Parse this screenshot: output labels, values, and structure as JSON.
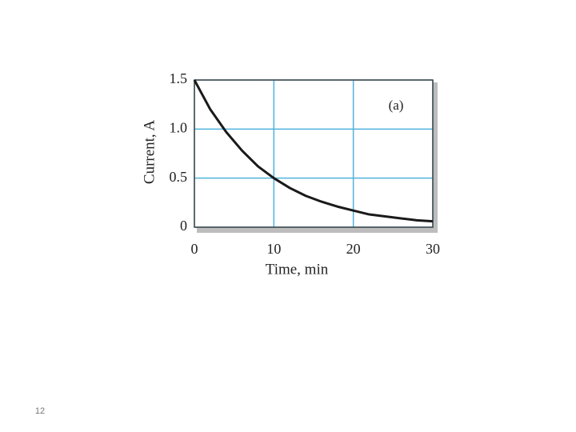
{
  "chart_data": {
    "type": "line",
    "annotation": "(a)",
    "x_label": "Time, min",
    "y_label": "Current, A",
    "x": [
      0,
      2,
      4,
      6,
      8,
      10,
      12,
      14,
      16,
      18,
      20,
      22,
      24,
      26,
      28,
      30
    ],
    "values": [
      1.5,
      1.2,
      0.97,
      0.78,
      0.62,
      0.5,
      0.4,
      0.32,
      0.26,
      0.21,
      0.17,
      0.13,
      0.11,
      0.09,
      0.07,
      0.06
    ],
    "color": "#1a1a1a",
    "grid": true,
    "grid_color": "#4fb3dd",
    "xlim": [
      0,
      30
    ],
    "xticks": [
      0,
      10,
      20,
      30
    ],
    "ylim": [
      0,
      1.5
    ],
    "yticks": [
      0,
      0.5,
      {
        "value": 1,
        "label": "1.0"
      },
      1.5
    ]
  },
  "page_number": "12"
}
